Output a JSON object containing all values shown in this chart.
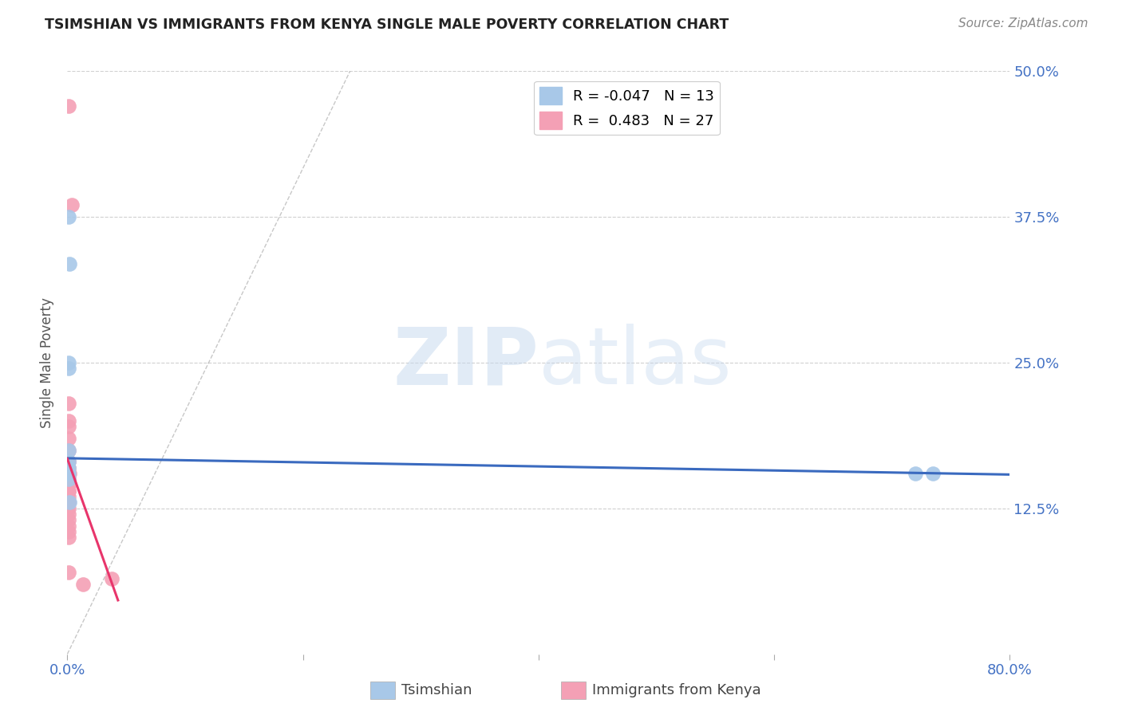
{
  "title": "TSIMSHIAN VS IMMIGRANTS FROM KENYA SINGLE MALE POVERTY CORRELATION CHART",
  "source": "Source: ZipAtlas.com",
  "ylabel": "Single Male Poverty",
  "xlim": [
    0.0,
    0.8
  ],
  "ylim": [
    0.0,
    0.5
  ],
  "xticks": [
    0.0,
    0.2,
    0.4,
    0.6,
    0.8
  ],
  "xtick_labels": [
    "0.0%",
    "",
    "",
    "",
    "80.0%"
  ],
  "yticks": [
    0.0,
    0.125,
    0.25,
    0.375,
    0.5
  ],
  "ytick_labels": [
    "",
    "12.5%",
    "25.0%",
    "37.5%",
    "50.0%"
  ],
  "watermark_zip": "ZIP",
  "watermark_atlas": "atlas",
  "legend_entries": [
    {
      "label": "R = -0.047   N = 13",
      "color": "#a8c8e8"
    },
    {
      "label": "R =  0.483   N = 27",
      "color": "#f4a0b5"
    }
  ],
  "tsimshian_x": [
    0.001,
    0.002,
    0.001,
    0.001,
    0.001,
    0.001,
    0.001,
    0.001,
    0.001,
    0.001,
    0.002,
    0.72,
    0.735
  ],
  "tsimshian_y": [
    0.375,
    0.335,
    0.25,
    0.245,
    0.175,
    0.165,
    0.16,
    0.155,
    0.155,
    0.15,
    0.13,
    0.155,
    0.155
  ],
  "kenya_x": [
    0.001,
    0.004,
    0.001,
    0.001,
    0.001,
    0.001,
    0.001,
    0.001,
    0.001,
    0.002,
    0.001,
    0.001,
    0.001,
    0.001,
    0.001,
    0.001,
    0.001,
    0.001,
    0.001,
    0.001,
    0.001,
    0.001,
    0.001,
    0.001,
    0.001,
    0.013,
    0.038
  ],
  "kenya_y": [
    0.47,
    0.385,
    0.215,
    0.2,
    0.195,
    0.185,
    0.175,
    0.165,
    0.16,
    0.155,
    0.155,
    0.15,
    0.145,
    0.14,
    0.14,
    0.135,
    0.13,
    0.13,
    0.125,
    0.12,
    0.115,
    0.11,
    0.105,
    0.1,
    0.07,
    0.06,
    0.065
  ],
  "tsimshian_color": "#a8c8e8",
  "kenya_color": "#f4a0b5",
  "tsimshian_trendline_color": "#3a6abf",
  "kenya_trendline_color": "#e8356b",
  "background_color": "#ffffff",
  "grid_color": "#d0d0d0",
  "tick_color": "#4472c4",
  "ylabel_color": "#555555",
  "title_color": "#222222",
  "source_color": "#888888",
  "watermark_color": "#c5d8ee"
}
